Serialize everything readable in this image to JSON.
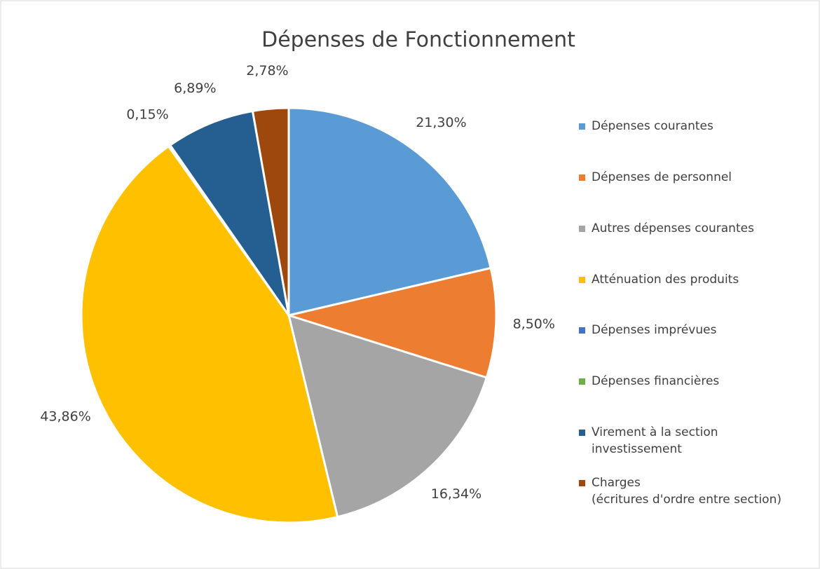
{
  "chart_data": {
    "type": "pie",
    "title": "Dépenses de Fonctionnement",
    "categories": [
      "Dépenses courantes",
      "Dépenses de personnel",
      "Autres dépenses courantes",
      "Atténuation des produits",
      "Dépenses imprévues",
      "Dépenses financières",
      "Virement à la section\ninvestissement",
      "Charges\n(écritures d'ordre entre section)"
    ],
    "values": [
      21.3,
      8.5,
      16.34,
      43.86,
      0.15,
      0,
      6.89,
      2.78
    ],
    "value_labels": [
      "21,30%",
      "8,50%",
      "16,34%",
      "43,86%",
      "0,15%",
      null,
      "6,89%",
      "2,78%"
    ],
    "colors": [
      "#5b9bd5",
      "#ed7d31",
      "#a5a5a5",
      "#ffc000",
      "#4472c4",
      "#70ad47",
      "#255e91",
      "#9e480e"
    ],
    "legend": "right"
  }
}
